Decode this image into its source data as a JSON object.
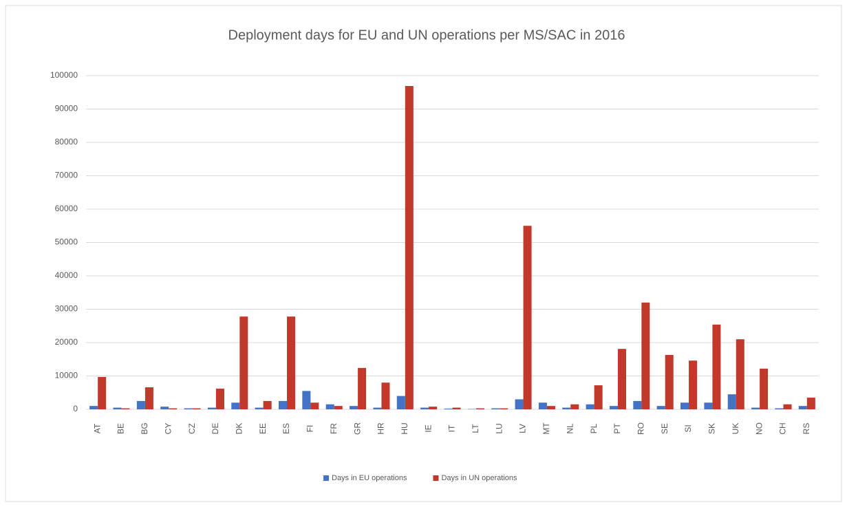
{
  "chart_data": {
    "type": "bar",
    "title": "Deployment days for EU and UN operations per MS/SAC in 2016",
    "categories": [
      "AT",
      "BE",
      "BG",
      "CY",
      "CZ",
      "DE",
      "DK",
      "EE",
      "ES",
      "FI",
      "FR",
      "GR",
      "HR",
      "HU",
      "IE",
      "IT",
      "LT",
      "LU",
      "LV",
      "MT",
      "NL",
      "PL",
      "PT",
      "RO",
      "SE",
      "SI",
      "SK",
      "UK",
      "NO",
      "CH",
      "RS"
    ],
    "series": [
      {
        "name": "Days in EU operations",
        "color": "#4472c4",
        "values": [
          1000,
          500,
          2500,
          800,
          300,
          500,
          2000,
          500,
          2500,
          5500,
          1500,
          1000,
          500,
          4000,
          500,
          200,
          100,
          300,
          3000,
          2000,
          500,
          1500,
          1000,
          2500,
          1000,
          2000,
          2000,
          4500,
          500,
          300,
          1000
        ]
      },
      {
        "name": "Days in UN operations",
        "color": "#c0392b",
        "values": [
          9700,
          300,
          6600,
          300,
          300,
          6200,
          27800,
          2500,
          27800,
          2000,
          1000,
          12400,
          8000,
          96900,
          800,
          500,
          300,
          300,
          55000,
          1000,
          1500,
          7200,
          18100,
          32000,
          16300,
          14600,
          25400,
          21000,
          12200,
          1500,
          3500
        ]
      }
    ],
    "ylim": [
      0,
      100000
    ],
    "yticks": [
      0,
      10000,
      20000,
      30000,
      40000,
      50000,
      60000,
      70000,
      80000,
      90000,
      100000
    ],
    "grid": true
  }
}
